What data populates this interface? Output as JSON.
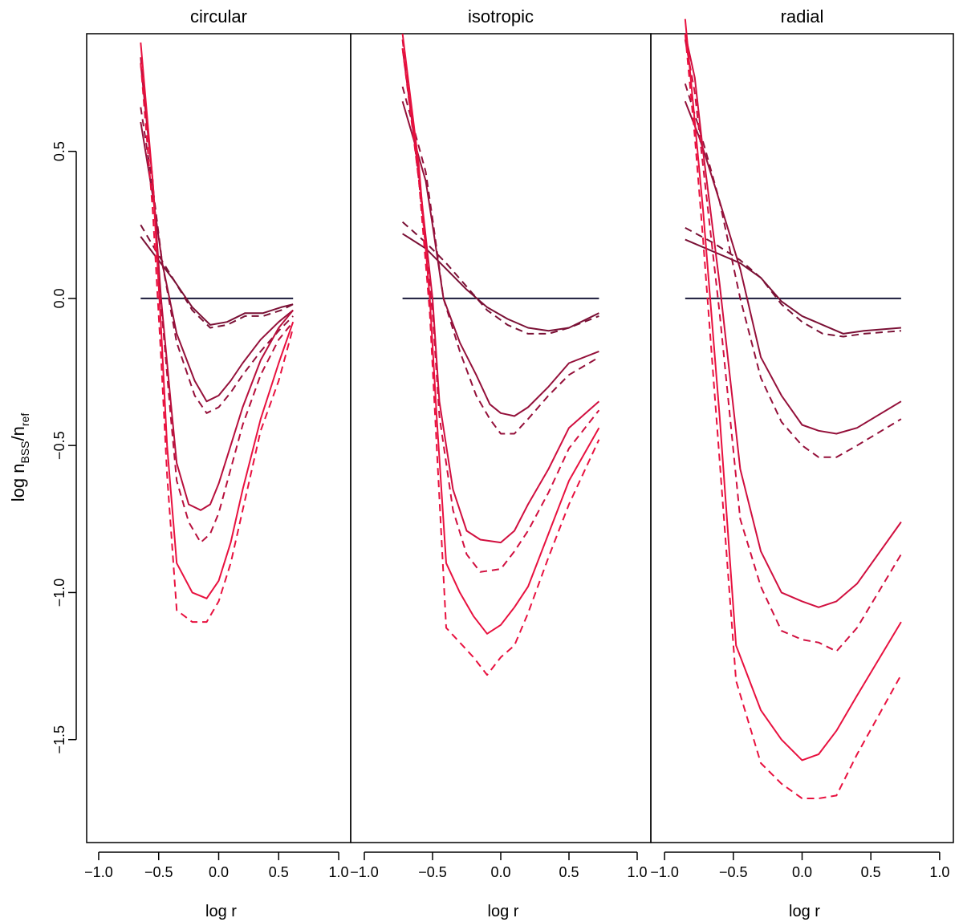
{
  "ylabel": {
    "main": "log n",
    "sub1": "BSS",
    "sep": "/n",
    "sub2": "ref"
  },
  "xlabel": "log r",
  "chart_data": {
    "type": "line",
    "ylim": [
      -1.85,
      0.9
    ],
    "xlim": [
      -1.1,
      1.1
    ],
    "yticks": [
      -1.5,
      -1.0,
      -0.5,
      0.0,
      0.5
    ],
    "ytick_labels": [
      "−1.5",
      "−1.0",
      "−0.5",
      "0.0",
      "0.5"
    ],
    "xticks": [
      -1.0,
      -0.5,
      0.0,
      0.5,
      1.0
    ],
    "xtick_labels": [
      "−1.0",
      "−0.5",
      "0.0",
      "0.5",
      "1.0"
    ],
    "grid": false,
    "legend": "none",
    "reference_color": "#1a1a3a",
    "colors": [
      "#7a1035",
      "#94103a",
      "#b80f3c",
      "#d10f3f",
      "#e8113f"
    ],
    "panels": [
      {
        "title": "circular",
        "xlabel": "log r",
        "reference": {
          "x": [
            -0.65,
            0.62
          ],
          "y": [
            0.0,
            0.0
          ]
        },
        "series": [
          {
            "color": 0,
            "dash": false,
            "x": [
              -0.65,
              -0.52,
              -0.37,
              -0.22,
              -0.07,
              0.07,
              0.22,
              0.37,
              0.52,
              0.62
            ],
            "y": [
              0.21,
              0.14,
              0.06,
              -0.03,
              -0.09,
              -0.08,
              -0.05,
              -0.05,
              -0.03,
              -0.02
            ]
          },
          {
            "color": 0,
            "dash": true,
            "x": [
              -0.65,
              -0.52,
              -0.37,
              -0.22,
              -0.07,
              0.07,
              0.22,
              0.37,
              0.52,
              0.62
            ],
            "y": [
              0.25,
              0.16,
              0.06,
              -0.04,
              -0.1,
              -0.09,
              -0.06,
              -0.06,
              -0.04,
              -0.02
            ]
          },
          {
            "color": 1,
            "dash": false,
            "x": [
              -0.65,
              -0.55,
              -0.47,
              -0.35,
              -0.2,
              -0.1,
              0.0,
              0.1,
              0.2,
              0.35,
              0.5,
              0.62
            ],
            "y": [
              0.6,
              0.35,
              0.12,
              -0.12,
              -0.28,
              -0.35,
              -0.33,
              -0.28,
              -0.22,
              -0.14,
              -0.08,
              -0.04
            ]
          },
          {
            "color": 1,
            "dash": true,
            "x": [
              -0.65,
              -0.55,
              -0.47,
              -0.35,
              -0.2,
              -0.1,
              0.0,
              0.1,
              0.2,
              0.35,
              0.5,
              0.62
            ],
            "y": [
              0.65,
              0.38,
              0.12,
              -0.15,
              -0.33,
              -0.39,
              -0.37,
              -0.32,
              -0.26,
              -0.18,
              -0.11,
              -0.06
            ]
          },
          {
            "color": 2,
            "dash": false,
            "x": [
              -0.65,
              -0.55,
              -0.48,
              -0.4,
              -0.35,
              -0.25,
              -0.15,
              -0.07,
              0.0,
              0.1,
              0.2,
              0.35,
              0.5,
              0.62
            ],
            "y": [
              0.8,
              0.4,
              0.0,
              -0.35,
              -0.56,
              -0.7,
              -0.72,
              -0.7,
              -0.63,
              -0.5,
              -0.37,
              -0.21,
              -0.1,
              -0.04
            ]
          },
          {
            "color": 2,
            "dash": true,
            "x": [
              -0.65,
              -0.55,
              -0.48,
              -0.4,
              -0.35,
              -0.25,
              -0.15,
              -0.07,
              0.0,
              0.1,
              0.2,
              0.35,
              0.5,
              0.62
            ],
            "y": [
              0.82,
              0.4,
              -0.02,
              -0.4,
              -0.62,
              -0.76,
              -0.83,
              -0.8,
              -0.73,
              -0.58,
              -0.43,
              -0.26,
              -0.14,
              -0.08
            ]
          },
          {
            "color": 4,
            "dash": false,
            "x": [
              -0.65,
              -0.55,
              -0.48,
              -0.43,
              -0.35,
              -0.22,
              -0.1,
              0.0,
              0.1,
              0.2,
              0.35,
              0.5,
              0.62
            ],
            "y": [
              0.87,
              0.4,
              -0.1,
              -0.5,
              -0.9,
              -1.0,
              -1.02,
              -0.96,
              -0.83,
              -0.65,
              -0.41,
              -0.22,
              -0.08
            ]
          },
          {
            "color": 4,
            "dash": true,
            "x": [
              -0.65,
              -0.55,
              -0.48,
              -0.43,
              -0.35,
              -0.22,
              -0.1,
              0.0,
              0.1,
              0.2,
              0.35,
              0.5,
              0.62
            ],
            "y": [
              0.8,
              0.3,
              -0.2,
              -0.6,
              -1.06,
              -1.1,
              -1.1,
              -1.03,
              -0.9,
              -0.72,
              -0.45,
              -0.28,
              -0.1
            ]
          }
        ]
      },
      {
        "title": "isotropic",
        "xlabel": "log r",
        "reference": {
          "x": [
            -0.72,
            0.72
          ],
          "y": [
            0.0,
            0.0
          ]
        },
        "series": [
          {
            "color": 0,
            "dash": false,
            "x": [
              -0.72,
              -0.55,
              -0.4,
              -0.25,
              -0.1,
              0.05,
              0.2,
              0.35,
              0.5,
              0.72
            ],
            "y": [
              0.22,
              0.17,
              0.1,
              0.03,
              -0.03,
              -0.07,
              -0.1,
              -0.11,
              -0.1,
              -0.05
            ]
          },
          {
            "color": 0,
            "dash": true,
            "x": [
              -0.72,
              -0.55,
              -0.4,
              -0.25,
              -0.1,
              0.05,
              0.2,
              0.35,
              0.5,
              0.72
            ],
            "y": [
              0.26,
              0.19,
              0.12,
              0.04,
              -0.04,
              -0.09,
              -0.12,
              -0.12,
              -0.1,
              -0.06
            ]
          },
          {
            "color": 1,
            "dash": false,
            "x": [
              -0.72,
              -0.55,
              -0.5,
              -0.42,
              -0.3,
              -0.18,
              -0.08,
              0.0,
              0.1,
              0.2,
              0.35,
              0.5,
              0.72
            ],
            "y": [
              0.67,
              0.4,
              0.25,
              0.0,
              -0.15,
              -0.26,
              -0.36,
              -0.39,
              -0.4,
              -0.37,
              -0.3,
              -0.22,
              -0.18
            ]
          },
          {
            "color": 1,
            "dash": true,
            "x": [
              -0.72,
              -0.55,
              -0.5,
              -0.42,
              -0.3,
              -0.18,
              -0.08,
              0.0,
              0.1,
              0.2,
              0.35,
              0.5,
              0.72
            ],
            "y": [
              0.72,
              0.43,
              0.27,
              0.0,
              -0.18,
              -0.33,
              -0.41,
              -0.46,
              -0.46,
              -0.41,
              -0.33,
              -0.26,
              -0.2
            ]
          },
          {
            "color": 3,
            "dash": false,
            "x": [
              -0.72,
              -0.6,
              -0.5,
              -0.45,
              -0.35,
              -0.25,
              -0.15,
              0.0,
              0.1,
              0.2,
              0.35,
              0.5,
              0.72
            ],
            "y": [
              0.85,
              0.42,
              0.0,
              -0.35,
              -0.65,
              -0.79,
              -0.82,
              -0.83,
              -0.79,
              -0.7,
              -0.58,
              -0.44,
              -0.35
            ]
          },
          {
            "color": 3,
            "dash": true,
            "x": [
              -0.72,
              -0.6,
              -0.5,
              -0.45,
              -0.35,
              -0.25,
              -0.15,
              0.0,
              0.1,
              0.2,
              0.35,
              0.5,
              0.72
            ],
            "y": [
              0.88,
              0.4,
              -0.05,
              -0.4,
              -0.72,
              -0.87,
              -0.93,
              -0.92,
              -0.86,
              -0.79,
              -0.66,
              -0.51,
              -0.38
            ]
          },
          {
            "color": 4,
            "dash": false,
            "x": [
              -0.72,
              -0.6,
              -0.52,
              -0.47,
              -0.4,
              -0.3,
              -0.2,
              -0.1,
              0.0,
              0.1,
              0.2,
              0.35,
              0.5,
              0.72
            ],
            "y": [
              0.9,
              0.45,
              0.0,
              -0.4,
              -0.9,
              -1.0,
              -1.08,
              -1.14,
              -1.11,
              -1.05,
              -0.98,
              -0.8,
              -0.62,
              -0.44
            ]
          },
          {
            "color": 4,
            "dash": true,
            "x": [
              -0.72,
              -0.6,
              -0.52,
              -0.47,
              -0.4,
              -0.3,
              -0.2,
              -0.1,
              0.0,
              0.1,
              0.2,
              0.35,
              0.5,
              0.72
            ],
            "y": [
              0.85,
              0.4,
              -0.05,
              -0.5,
              -1.12,
              -1.17,
              -1.22,
              -1.28,
              -1.22,
              -1.18,
              -1.07,
              -0.88,
              -0.7,
              -0.48
            ]
          }
        ]
      },
      {
        "title": "radial",
        "xlabel": "log r",
        "reference": {
          "x": [
            -0.85,
            0.72
          ],
          "y": [
            0.0,
            0.0
          ]
        },
        "series": [
          {
            "color": 0,
            "dash": false,
            "x": [
              -0.85,
              -0.65,
              -0.45,
              -0.3,
              -0.15,
              0.0,
              0.15,
              0.3,
              0.45,
              0.72
            ],
            "y": [
              0.2,
              0.16,
              0.12,
              0.07,
              -0.01,
              -0.06,
              -0.09,
              -0.12,
              -0.11,
              -0.1
            ]
          },
          {
            "color": 0,
            "dash": true,
            "x": [
              -0.85,
              -0.65,
              -0.45,
              -0.3,
              -0.15,
              0.0,
              0.15,
              0.3,
              0.45,
              0.72
            ],
            "y": [
              0.24,
              0.19,
              0.13,
              0.07,
              -0.02,
              -0.08,
              -0.12,
              -0.13,
              -0.12,
              -0.11
            ]
          },
          {
            "color": 1,
            "dash": false,
            "x": [
              -0.85,
              -0.75,
              -0.7,
              -0.6,
              -0.45,
              -0.3,
              -0.15,
              0.0,
              0.12,
              0.25,
              0.4,
              0.72
            ],
            "y": [
              0.67,
              0.55,
              0.48,
              0.33,
              0.1,
              -0.2,
              -0.33,
              -0.43,
              -0.45,
              -0.46,
              -0.44,
              -0.35
            ]
          },
          {
            "color": 1,
            "dash": true,
            "x": [
              -0.85,
              -0.75,
              -0.7,
              -0.6,
              -0.45,
              -0.3,
              -0.15,
              0.0,
              0.12,
              0.25,
              0.4,
              0.72
            ],
            "y": [
              0.73,
              0.58,
              0.5,
              0.33,
              0.0,
              -0.27,
              -0.42,
              -0.5,
              -0.54,
              -0.54,
              -0.5,
              -0.41
            ]
          },
          {
            "color": 3,
            "dash": false,
            "x": [
              -0.85,
              -0.78,
              -0.72,
              -0.6,
              -0.45,
              -0.3,
              -0.15,
              0.0,
              0.12,
              0.25,
              0.4,
              0.72
            ],
            "y": [
              0.9,
              0.75,
              0.5,
              0.05,
              -0.58,
              -0.86,
              -1.0,
              -1.03,
              -1.05,
              -1.03,
              -0.97,
              -0.76
            ]
          },
          {
            "color": 3,
            "dash": true,
            "x": [
              -0.85,
              -0.78,
              -0.72,
              -0.6,
              -0.45,
              -0.3,
              -0.15,
              0.0,
              0.12,
              0.25,
              0.4,
              0.72
            ],
            "y": [
              0.88,
              0.7,
              0.45,
              -0.05,
              -0.75,
              -0.98,
              -1.13,
              -1.16,
              -1.17,
              -1.2,
              -1.12,
              -0.87
            ]
          },
          {
            "color": 4,
            "dash": false,
            "x": [
              -0.85,
              -0.78,
              -0.72,
              -0.6,
              -0.48,
              -0.3,
              -0.15,
              0.0,
              0.12,
              0.25,
              0.4,
              0.72
            ],
            "y": [
              0.95,
              0.6,
              0.3,
              -0.4,
              -1.18,
              -1.4,
              -1.5,
              -1.57,
              -1.55,
              -1.47,
              -1.35,
              -1.1
            ]
          },
          {
            "color": 4,
            "dash": true,
            "x": [
              -0.85,
              -0.78,
              -0.72,
              -0.6,
              -0.48,
              -0.3,
              -0.15,
              0.0,
              0.12,
              0.25,
              0.4,
              0.72
            ],
            "y": [
              0.9,
              0.55,
              0.2,
              -0.55,
              -1.3,
              -1.58,
              -1.65,
              -1.7,
              -1.7,
              -1.69,
              -1.55,
              -1.28
            ]
          }
        ]
      }
    ]
  }
}
